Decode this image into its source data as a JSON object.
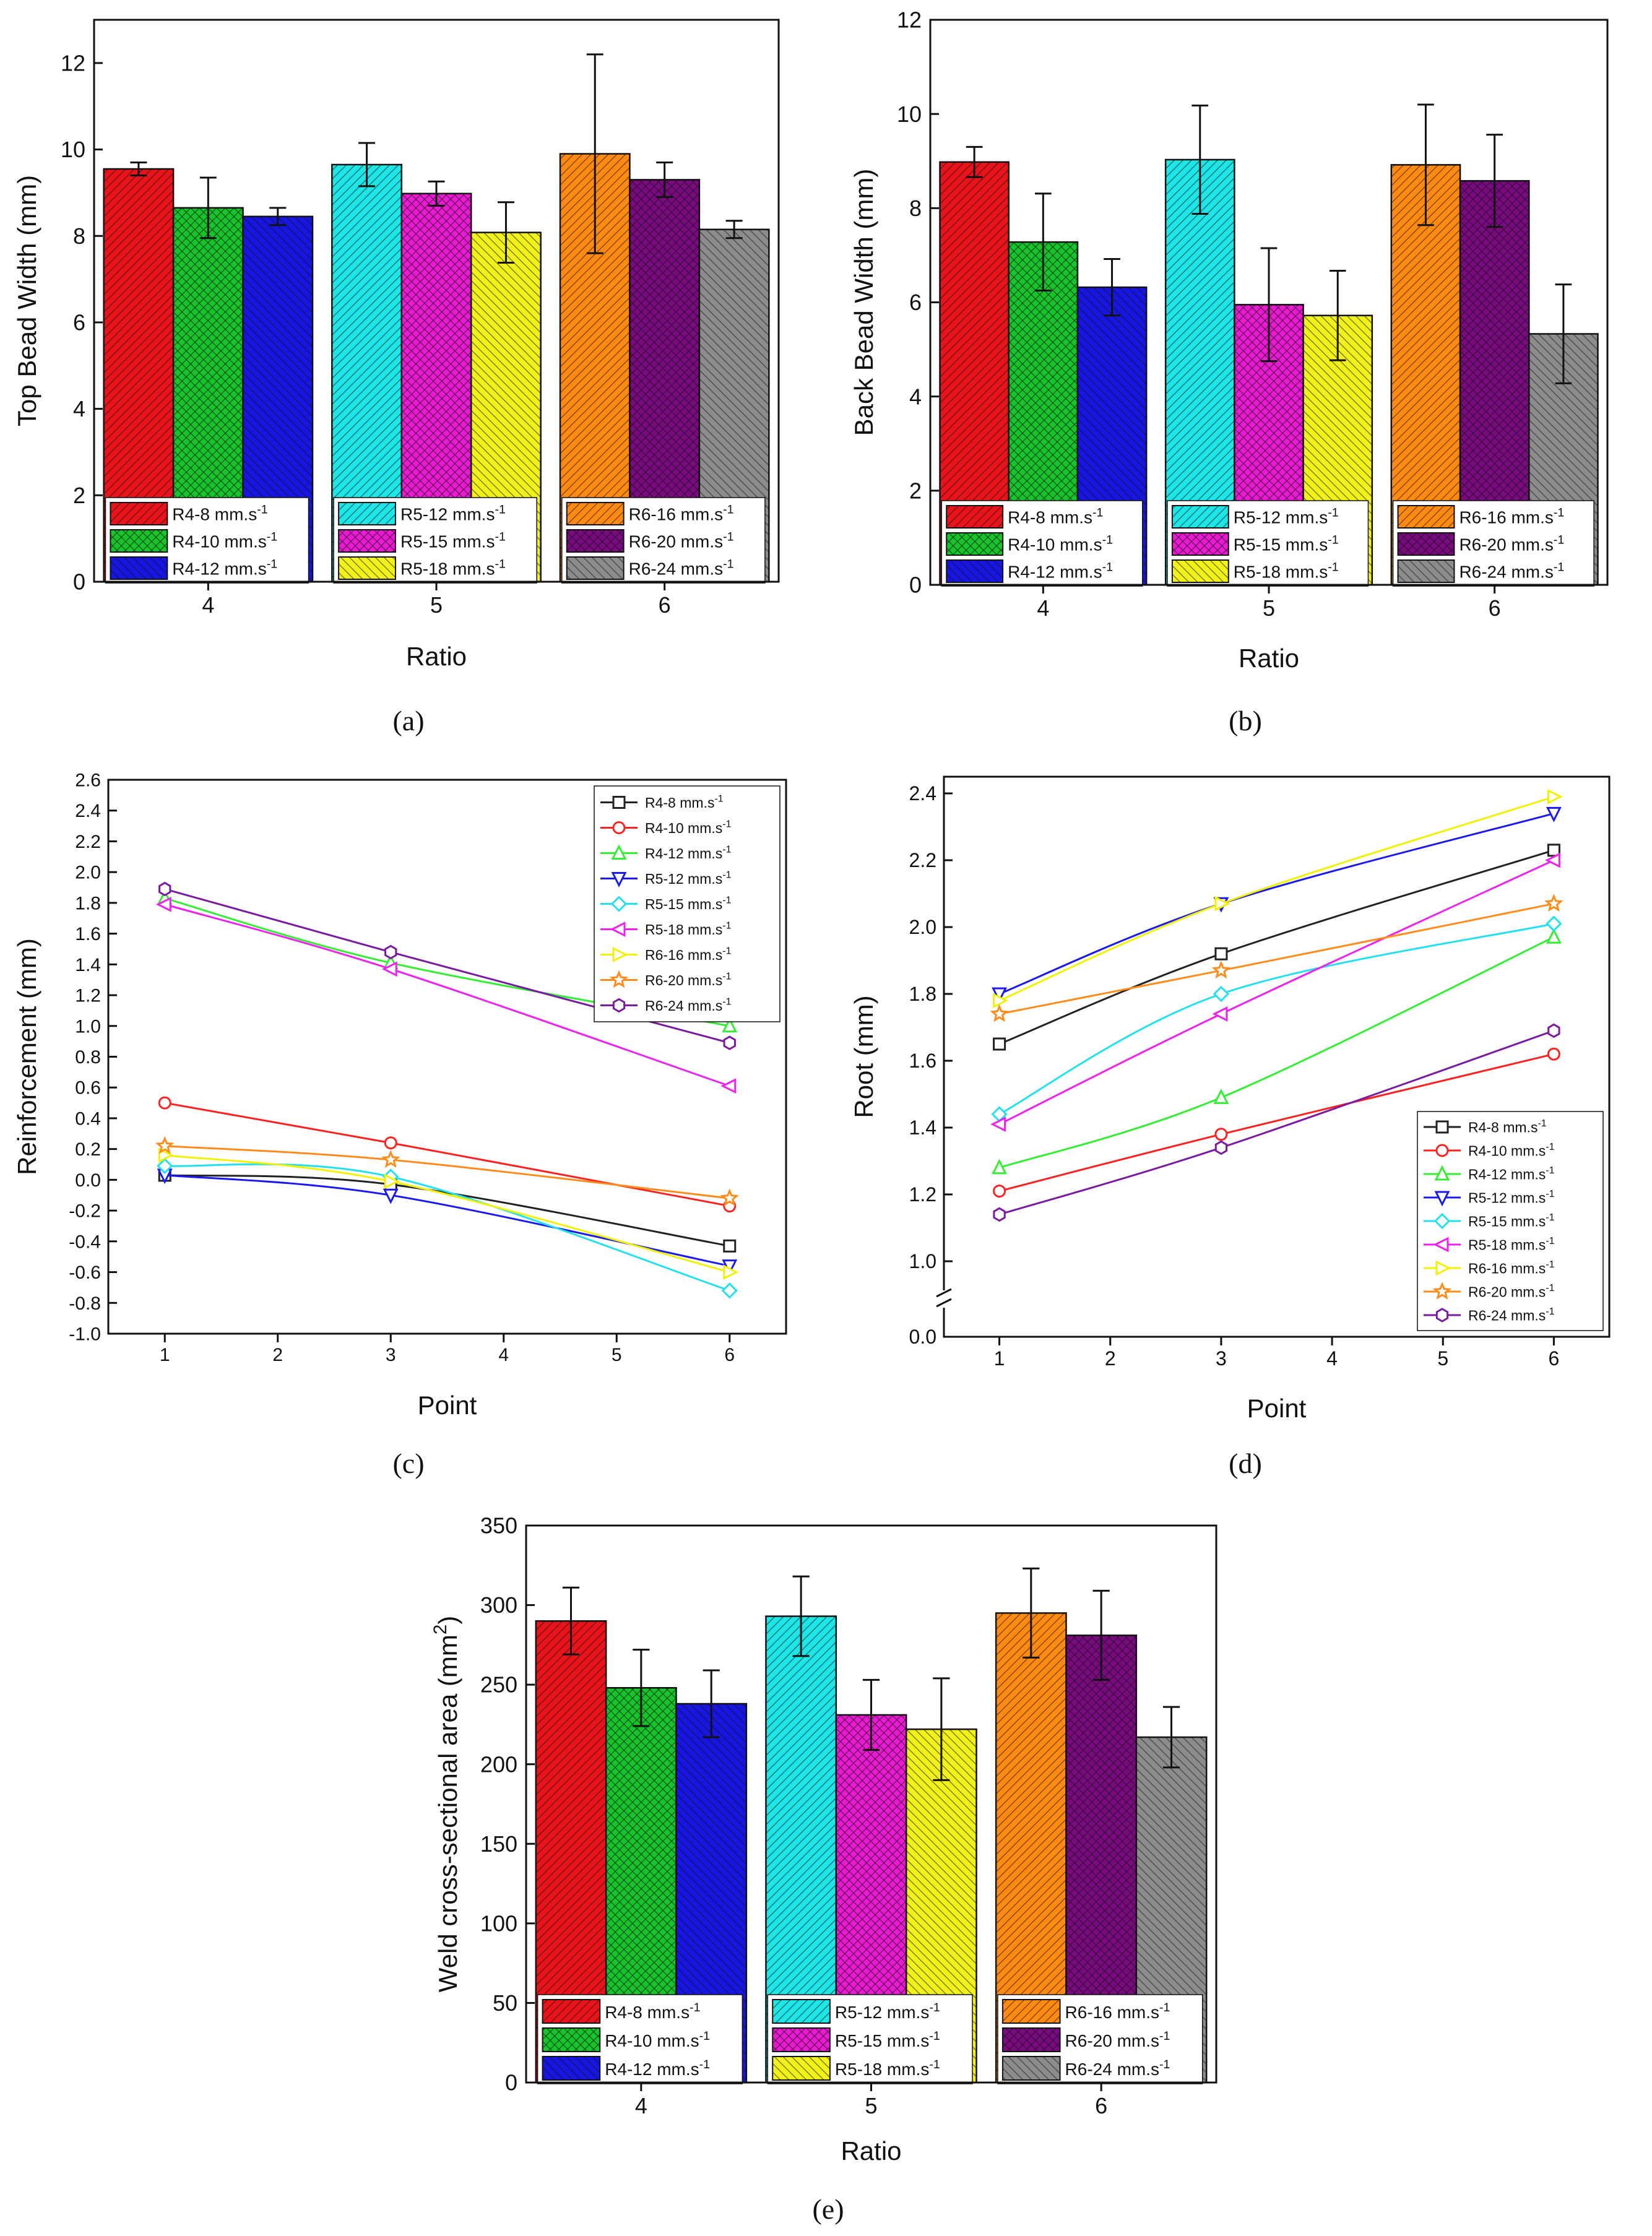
{
  "figure": {
    "panel_labels": [
      "(a)",
      "(b)",
      "(c)",
      "(d)",
      "(e)"
    ]
  },
  "legend_labels": [
    "R4-8 mm.s",
    "R4-10 mm.s",
    "R4-12 mm.s",
    "R5-12 mm.s",
    "R5-15 mm.s",
    "R5-18 mm.s",
    "R6-16 mm.s",
    "R6-20 mm.s",
    "R6-24 mm.s"
  ],
  "unit_superscript": "-1",
  "series_colors": [
    "#222222",
    "#ff2020",
    "#33ee33",
    "#1a1aee",
    "#22e0ee",
    "#ee22ee",
    "#f2f200",
    "#ff8c1a",
    "#7a1a9e"
  ],
  "bar_colors": [
    "#e8131b",
    "#18c42b",
    "#1616e0",
    "#1ee6e6",
    "#ea1ad2",
    "#f2f21a",
    "#ff8a12",
    "#7a0a80",
    "#8c8c8c"
  ],
  "chart_data": [
    {
      "id": "a",
      "type": "bar",
      "title": "",
      "xlabel": "Ratio",
      "ylabel": "Top Bead Width (mm)",
      "categories": [
        "4",
        "5",
        "6"
      ],
      "ylim": [
        0,
        13
      ],
      "yticks": [
        0,
        2,
        4,
        6,
        8,
        10,
        12
      ],
      "ytick_labels": [
        "0",
        "2",
        "4",
        "6",
        "8",
        "10",
        "12"
      ],
      "bars": [
        {
          "group": 0,
          "series": "R4-8 mm.s-1",
          "value": 9.55,
          "err": 0.15
        },
        {
          "group": 0,
          "series": "R4-10 mm.s-1",
          "value": 8.65,
          "err": 0.7
        },
        {
          "group": 0,
          "series": "R4-12 mm.s-1",
          "value": 8.45,
          "err": 0.2
        },
        {
          "group": 1,
          "series": "R5-12 mm.s-1",
          "value": 9.65,
          "err": 0.5
        },
        {
          "group": 1,
          "series": "R5-15 mm.s-1",
          "value": 8.98,
          "err": 0.28
        },
        {
          "group": 1,
          "series": "R5-18 mm.s-1",
          "value": 8.08,
          "err": 0.7
        },
        {
          "group": 2,
          "series": "R6-16 mm.s-1",
          "value": 9.9,
          "err": 2.3
        },
        {
          "group": 2,
          "series": "R6-20 mm.s-1",
          "value": 9.3,
          "err": 0.4
        },
        {
          "group": 2,
          "series": "R6-24 mm.s-1",
          "value": 8.15,
          "err": 0.2
        }
      ]
    },
    {
      "id": "b",
      "type": "bar",
      "title": "",
      "xlabel": "Ratio",
      "ylabel": "Back Bead Width (mm)",
      "categories": [
        "4",
        "5",
        "6"
      ],
      "ylim": [
        0,
        12
      ],
      "yticks": [
        0,
        2,
        4,
        6,
        8,
        10,
        12
      ],
      "ytick_labels": [
        "0",
        "2",
        "4",
        "6",
        "8",
        "10",
        "12"
      ],
      "bars": [
        {
          "group": 0,
          "series": "R4-8 mm.s-1",
          "value": 8.98,
          "err": 0.32
        },
        {
          "group": 0,
          "series": "R4-10 mm.s-1",
          "value": 7.28,
          "err": 1.03
        },
        {
          "group": 0,
          "series": "R4-12 mm.s-1",
          "value": 6.32,
          "err": 0.6
        },
        {
          "group": 1,
          "series": "R5-12 mm.s-1",
          "value": 9.03,
          "err": 1.15
        },
        {
          "group": 1,
          "series": "R5-15 mm.s-1",
          "value": 5.95,
          "err": 1.2
        },
        {
          "group": 1,
          "series": "R5-18 mm.s-1",
          "value": 5.72,
          "err": 0.95
        },
        {
          "group": 2,
          "series": "R6-16 mm.s-1",
          "value": 8.92,
          "err": 1.28
        },
        {
          "group": 2,
          "series": "R6-20 mm.s-1",
          "value": 8.58,
          "err": 0.98
        },
        {
          "group": 2,
          "series": "R6-24 mm.s-1",
          "value": 5.33,
          "err": 1.05
        }
      ]
    },
    {
      "id": "c",
      "type": "line",
      "title": "",
      "xlabel": "Point",
      "ylabel": "Reinforcement (mm)",
      "x": [
        1,
        3,
        6
      ],
      "xlim": [
        0.5,
        6.5
      ],
      "xticks": [
        1,
        2,
        3,
        4,
        5,
        6
      ],
      "xtick_labels": [
        "1",
        "2",
        "3",
        "4",
        "5",
        "6"
      ],
      "ylim": [
        -1.0,
        2.6
      ],
      "yticks": [
        -1.0,
        -0.8,
        -0.6,
        -0.4,
        -0.2,
        0.0,
        0.2,
        0.4,
        0.6,
        0.8,
        1.0,
        1.2,
        1.4,
        1.6,
        1.8,
        2.0,
        2.2,
        2.4,
        2.6
      ],
      "ytick_labels": [
        "-1.0",
        "-0.8",
        "-0.6",
        "-0.4",
        "-0.2",
        "0.0",
        "0.2",
        "0.4",
        "0.6",
        "0.8",
        "1.0",
        "1.2",
        "1.4",
        "1.6",
        "1.8",
        "2.0",
        "2.2",
        "2.4",
        "2.6"
      ],
      "legend_position": "top-right",
      "series": [
        {
          "name": "R4-8 mm.s-1",
          "marker": "square",
          "values": [
            0.03,
            -0.03,
            -0.43
          ]
        },
        {
          "name": "R4-10 mm.s-1",
          "marker": "circle",
          "values": [
            0.5,
            0.24,
            -0.17
          ]
        },
        {
          "name": "R4-12 mm.s-1",
          "marker": "triangle-up",
          "values": [
            1.83,
            1.41,
            1.0
          ]
        },
        {
          "name": "R5-12 mm.s-1",
          "marker": "triangle-down",
          "values": [
            0.03,
            -0.1,
            -0.56
          ]
        },
        {
          "name": "R5-15 mm.s-1",
          "marker": "diamond",
          "values": [
            0.09,
            0.02,
            -0.72
          ]
        },
        {
          "name": "R5-18 mm.s-1",
          "marker": "triangle-left",
          "values": [
            1.79,
            1.37,
            0.61
          ]
        },
        {
          "name": "R6-16 mm.s-1",
          "marker": "triangle-right",
          "values": [
            0.16,
            -0.01,
            -0.6
          ]
        },
        {
          "name": "R6-20 mm.s-1",
          "marker": "star",
          "values": [
            0.22,
            0.13,
            -0.12
          ]
        },
        {
          "name": "R6-24 mm.s-1",
          "marker": "hexagon",
          "values": [
            1.89,
            1.48,
            0.89
          ]
        }
      ]
    },
    {
      "id": "d",
      "type": "line",
      "title": "",
      "xlabel": "Point",
      "ylabel": "Root (mm)",
      "x": [
        1,
        3,
        6
      ],
      "xlim": [
        0.5,
        6.5
      ],
      "xticks": [
        1,
        2,
        3,
        4,
        5,
        6
      ],
      "xtick_labels": [
        "1",
        "2",
        "3",
        "4",
        "5",
        "6"
      ],
      "ylim": [
        1.0,
        2.45
      ],
      "axis_break": true,
      "break_low_label": "0.0",
      "yticks": [
        1.0,
        1.2,
        1.4,
        1.6,
        1.8,
        2.0,
        2.2,
        2.4
      ],
      "ytick_labels": [
        "1.0",
        "1.2",
        "1.4",
        "1.6",
        "1.8",
        "2.0",
        "2.2",
        "2.4"
      ],
      "legend_position": "bottom-right",
      "series": [
        {
          "name": "R4-8 mm.s-1",
          "marker": "square",
          "values": [
            1.65,
            1.92,
            2.23
          ]
        },
        {
          "name": "R4-10 mm.s-1",
          "marker": "circle",
          "values": [
            1.21,
            1.38,
            1.62
          ]
        },
        {
          "name": "R4-12 mm.s-1",
          "marker": "triangle-up",
          "values": [
            1.28,
            1.49,
            1.97
          ]
        },
        {
          "name": "R5-12 mm.s-1",
          "marker": "triangle-down",
          "values": [
            1.8,
            2.07,
            2.34
          ]
        },
        {
          "name": "R5-15 mm.s-1",
          "marker": "diamond",
          "values": [
            1.44,
            1.8,
            2.01
          ]
        },
        {
          "name": "R5-18 mm.s-1",
          "marker": "triangle-left",
          "values": [
            1.41,
            1.74,
            2.2
          ]
        },
        {
          "name": "R6-16 mm.s-1",
          "marker": "triangle-right",
          "values": [
            1.78,
            2.07,
            2.39
          ]
        },
        {
          "name": "R6-20 mm.s-1",
          "marker": "star",
          "values": [
            1.74,
            1.87,
            2.07
          ]
        },
        {
          "name": "R6-24 mm.s-1",
          "marker": "hexagon",
          "values": [
            1.14,
            1.34,
            1.69
          ]
        }
      ]
    },
    {
      "id": "e",
      "type": "bar",
      "title": "",
      "xlabel": "Ratio",
      "ylabel": "Weld cross-sectional area (mm",
      "ylabel_superscript": "2",
      "ylabel_suffix": ")",
      "categories": [
        "4",
        "5",
        "6"
      ],
      "ylim": [
        0,
        350
      ],
      "yticks": [
        0,
        50,
        100,
        150,
        200,
        250,
        300,
        350
      ],
      "ytick_labels": [
        "0",
        "50",
        "100",
        "150",
        "200",
        "250",
        "300",
        "350"
      ],
      "bars": [
        {
          "group": 0,
          "series": "R4-8 mm.s-1",
          "value": 290,
          "err": 21
        },
        {
          "group": 0,
          "series": "R4-10 mm.s-1",
          "value": 248,
          "err": 24
        },
        {
          "group": 0,
          "series": "R4-12 mm.s-1",
          "value": 238,
          "err": 21
        },
        {
          "group": 1,
          "series": "R5-12 mm.s-1",
          "value": 293,
          "err": 25
        },
        {
          "group": 1,
          "series": "R5-15 mm.s-1",
          "value": 231,
          "err": 22
        },
        {
          "group": 1,
          "series": "R5-18 mm.s-1",
          "value": 222,
          "err": 32
        },
        {
          "group": 2,
          "series": "R6-16 mm.s-1",
          "value": 295,
          "err": 28
        },
        {
          "group": 2,
          "series": "R6-20 mm.s-1",
          "value": 281,
          "err": 28
        },
        {
          "group": 2,
          "series": "R6-24 mm.s-1",
          "value": 217,
          "err": 19
        }
      ]
    }
  ]
}
